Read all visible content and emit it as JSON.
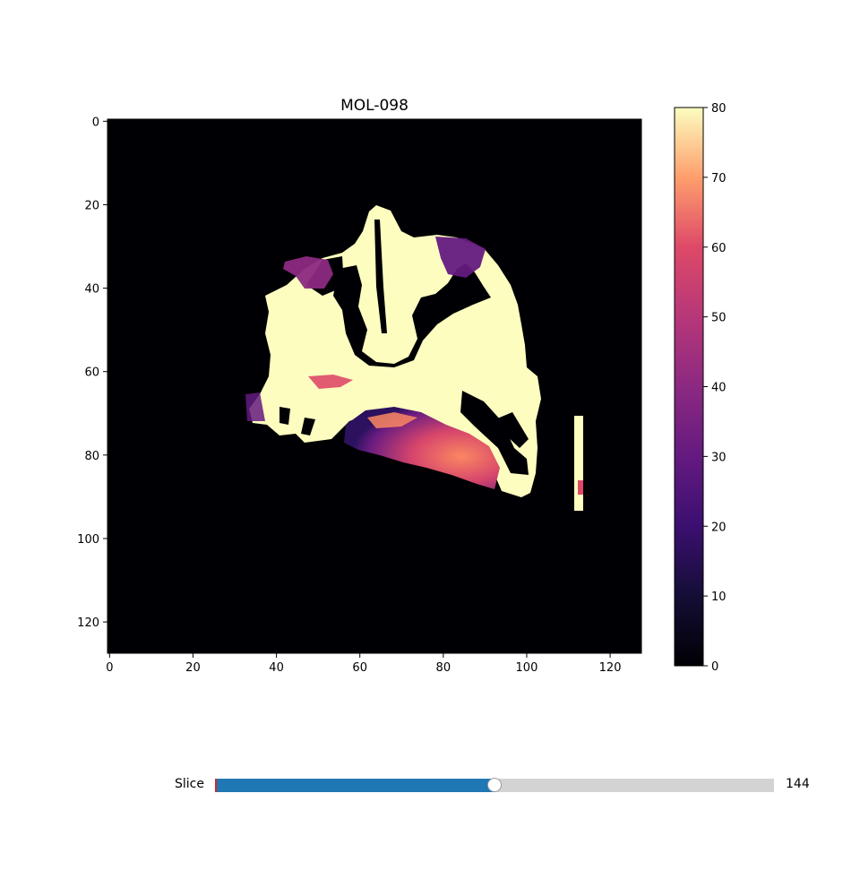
{
  "window": {
    "title": "MOL-098"
  },
  "image_panel": {
    "colormap": "magma",
    "x_ticks": [
      "0",
      "20",
      "40",
      "60",
      "80",
      "100",
      "120"
    ],
    "y_ticks": [
      "0",
      "20",
      "40",
      "60",
      "80",
      "100",
      "120"
    ],
    "x_range": [
      0,
      128
    ],
    "y_range": [
      0,
      128
    ]
  },
  "colorbar": {
    "ticks": [
      "0",
      "10",
      "20",
      "30",
      "40",
      "50",
      "60",
      "70",
      "80"
    ],
    "range": [
      0,
      80
    ]
  },
  "slider": {
    "label": "Slice",
    "value_text": "144",
    "fraction": 0.5
  },
  "colors": {
    "slider_fill": "#1f77b4",
    "slider_track": "#d3d3d3",
    "slider_min_marker": "#d62728"
  }
}
